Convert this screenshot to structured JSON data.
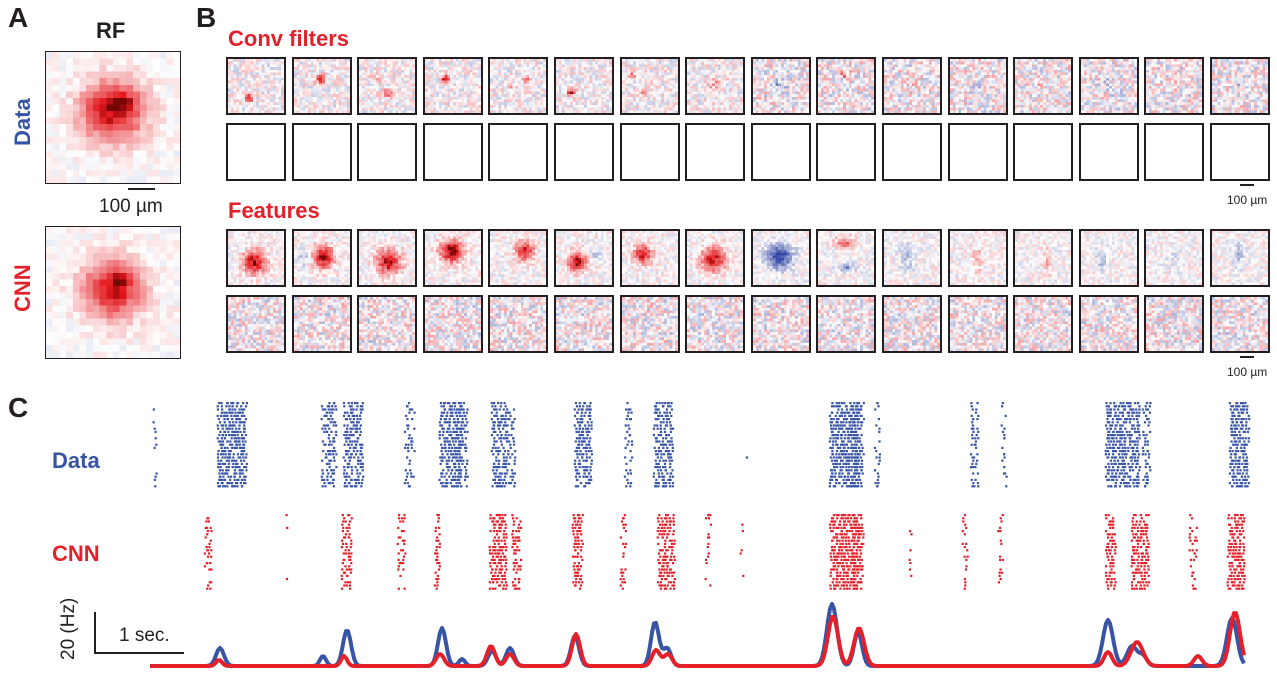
{
  "panels": {
    "a_letter": "A",
    "b_letter": "B",
    "c_letter": "C"
  },
  "panel_a": {
    "title": "RF",
    "row_data": "Data",
    "row_cnn": "CNN",
    "scale_label": "100 µm"
  },
  "panel_b": {
    "conv_title": "Conv filters",
    "features_title": "Features",
    "scale_label_1": "100 µm",
    "scale_label_2": "100 µm",
    "tiles_per_row": 16
  },
  "panel_c": {
    "row_data": "Data",
    "row_cnn": "CNN",
    "y_scale_label": "20 (Hz)",
    "x_scale_label": "1 sec."
  },
  "colors": {
    "red": "#e4202a",
    "blue": "#3854a5",
    "black": "#231f20"
  }
}
